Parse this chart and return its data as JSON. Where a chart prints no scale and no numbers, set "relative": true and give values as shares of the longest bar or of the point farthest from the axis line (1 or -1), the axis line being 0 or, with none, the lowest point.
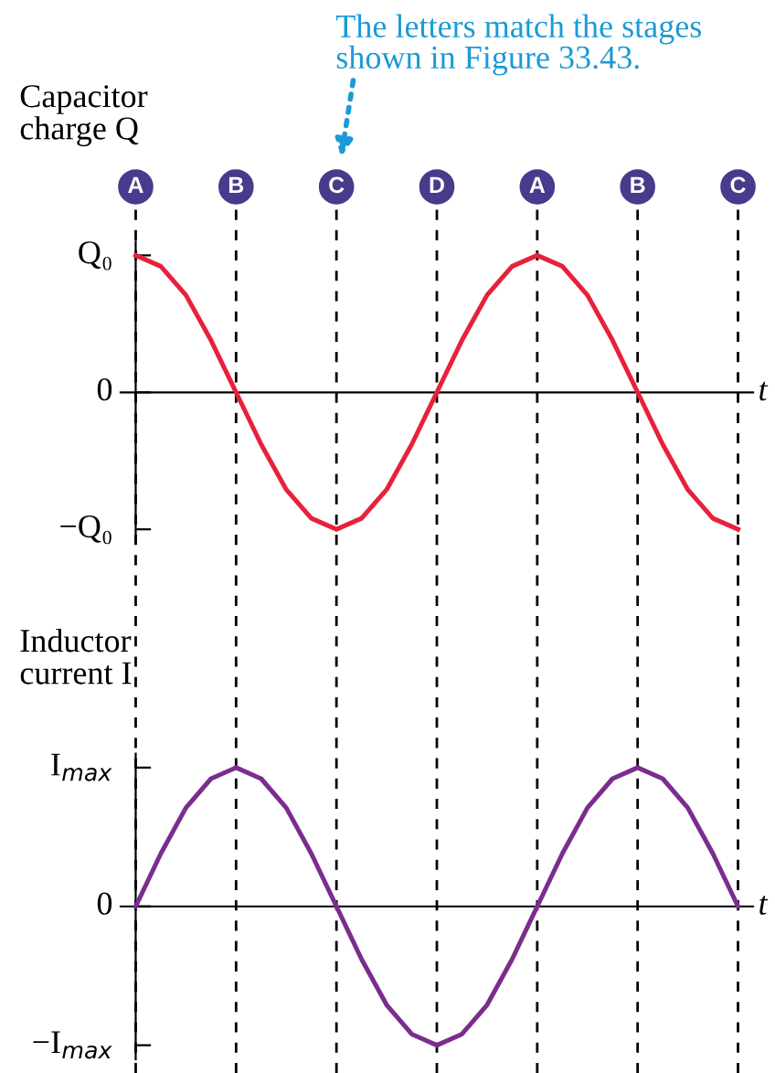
{
  "chart_data": [
    {
      "type": "line",
      "relative": true,
      "ylabel": "Capacitor\ncharge Q",
      "xlabel": "t",
      "grid": "x",
      "legend": false,
      "marker": "none",
      "line_style": "solid",
      "categories": [
        "A",
        null,
        null,
        null,
        "B",
        null,
        null,
        null,
        "C",
        null,
        null,
        null,
        "D",
        null,
        null,
        null,
        "A",
        null,
        null,
        null,
        "B",
        null,
        null,
        null,
        "C"
      ],
      "series": [
        {
          "color": "#e8213a",
          "values": [
            1,
            0.92,
            0.71,
            0.38,
            0,
            -0.38,
            -0.71,
            -0.92,
            -1,
            -0.92,
            -0.71,
            -0.38,
            0,
            0.38,
            0.71,
            0.92,
            1,
            0.92,
            0.71,
            0.38,
            0,
            -0.38,
            -0.71,
            -0.92,
            -1
          ]
        }
      ],
      "annotations": [
        "Q₀",
        "0",
        "−Q₀",
        "The letters match the stages\nshown in Figure 33.43."
      ]
    },
    {
      "type": "line",
      "relative": true,
      "ylabel": "Inductor\ncurrent I",
      "xlabel": "t",
      "legend": false,
      "marker": "none",
      "line_style": "solid",
      "categories": [
        null,
        null,
        null,
        null,
        null,
        null,
        null,
        null,
        null,
        null,
        null,
        null,
        null,
        null,
        null,
        null,
        null,
        null,
        null,
        null,
        null,
        null,
        null,
        null,
        null
      ],
      "series": [
        {
          "color": "#7b2d8e",
          "values": [
            0,
            0.38,
            0.71,
            0.92,
            1,
            0.92,
            0.71,
            0.38,
            0,
            -0.38,
            -0.71,
            -0.92,
            -1,
            -0.92,
            -0.71,
            -0.38,
            0,
            0.38,
            0.71,
            0.92,
            1,
            0.92,
            0.71,
            0.38,
            0
          ]
        }
      ],
      "annotations": [
        "I$_{max}$",
        "0",
        "−I$_{max}$"
      ]
    }
  ]
}
